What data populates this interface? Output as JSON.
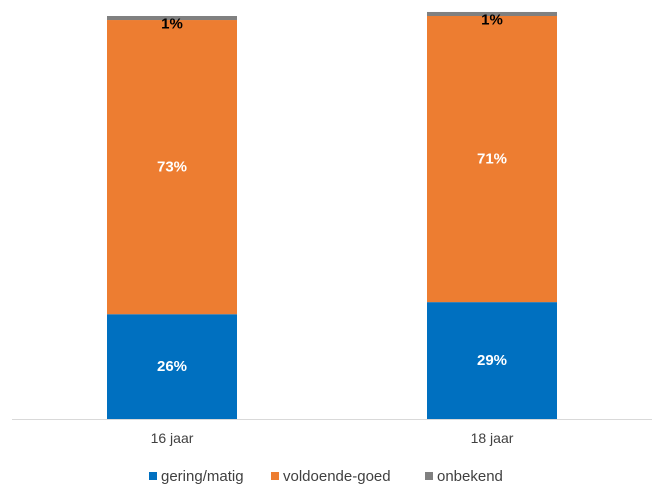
{
  "chart_data": {
    "type": "bar",
    "stacked": true,
    "percent_stacked": true,
    "categories": [
      "16 jaar",
      "18 jaar"
    ],
    "series": [
      {
        "name": "gering/matig",
        "values": [
          26,
          29
        ],
        "labels": [
          "26%",
          "29%"
        ],
        "color": "#0070C0",
        "label_color": "#ffffff"
      },
      {
        "name": "voldoende-goed",
        "values": [
          73,
          71
        ],
        "labels": [
          "73%",
          "71%"
        ],
        "color": "#ED7D31",
        "label_color": "#ffffff"
      },
      {
        "name": "onbekend",
        "values": [
          1,
          1
        ],
        "labels": [
          "1%",
          "1%"
        ],
        "color": "#808080",
        "label_color": "#000000"
      }
    ],
    "ylim": [
      0,
      100
    ],
    "grid": false,
    "legend_position": "bottom",
    "axis_color": "#D9D9D9"
  }
}
